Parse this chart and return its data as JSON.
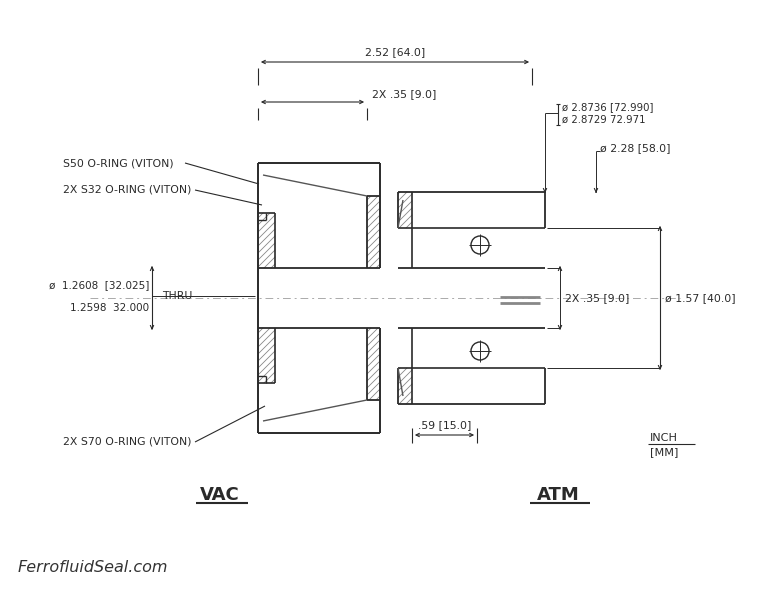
{
  "bg_color": "#ffffff",
  "line_color": "#2a2a2a",
  "dim_color": "#2a2a2a",
  "vac_label": "VAC",
  "atm_label": "ATM",
  "website": "FerrofluidSeal.com",
  "annotations": {
    "dim_252": "2.52 [64.0]",
    "dim_2x35_top": "2X .35 [9.0]",
    "dim_2x35_right": "2X .35 [9.0]",
    "dim_2_8736": "ø 2.8736 [72.990]",
    "dim_2_8729": "ø 2.8729 72.971",
    "dim_2_28": "ø 2.28 [58.0]",
    "dim_bore_top": "ø  1.2608  [32.025]",
    "dim_bore_bot": "    1.2598  32.000",
    "dim_thru": "THRU",
    "dim_157": "ø 1.57 [40.0]",
    "dim_059": ".59 [15.0]",
    "s50": "S50 O-RING (VITON)",
    "s32": "2X S32 O-RING (VITON)",
    "s70": "2X S70 O-RING (VITON)"
  }
}
